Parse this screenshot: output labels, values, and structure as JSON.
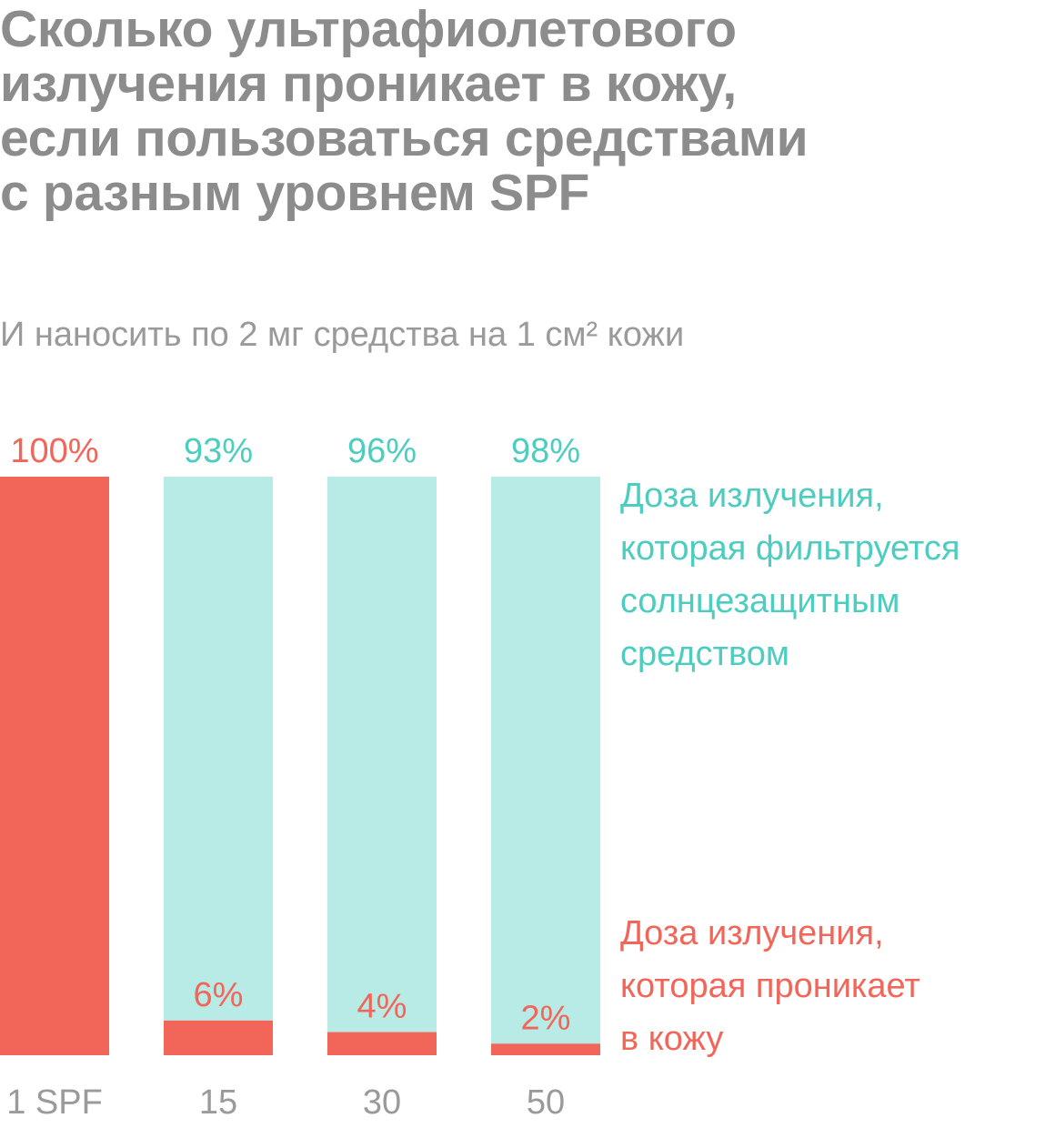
{
  "title_lines": [
    "Сколько ультрафиолетового",
    "излучения проникает в кожу,",
    "если пользоваться средствами",
    "с разным уровнем SPF"
  ],
  "subtitle": "И наносить по 2 мг средства на 1 см² кожи",
  "legend": {
    "filtered_lines": [
      "Доза излучения,",
      "которая фильтруется",
      "солнцезащитным",
      "средством"
    ],
    "penetrates_lines": [
      "Доза излучения,",
      "которая проникает",
      "в кожу"
    ]
  },
  "colors": {
    "filtered": "#b8eae6",
    "filtered_text": "#4ccdbf",
    "penetrates": "#f2665a",
    "title": "#8c8c8c",
    "axis_text": "#9a9a9a"
  },
  "chart_data": {
    "type": "bar",
    "stacked": true,
    "categories": [
      "1 SPF",
      "15",
      "30",
      "50"
    ],
    "series": [
      {
        "values": [
          100,
          6,
          4,
          2
        ],
        "labels": [
          "100%",
          "6%",
          "4%",
          "2%"
        ]
      },
      {
        "values": [
          0,
          93,
          96,
          98
        ],
        "labels": [
          "",
          "93%",
          "96%",
          "98%"
        ]
      }
    ],
    "ylim": [
      0,
      100
    ],
    "grid": false,
    "legend_position": "right"
  }
}
